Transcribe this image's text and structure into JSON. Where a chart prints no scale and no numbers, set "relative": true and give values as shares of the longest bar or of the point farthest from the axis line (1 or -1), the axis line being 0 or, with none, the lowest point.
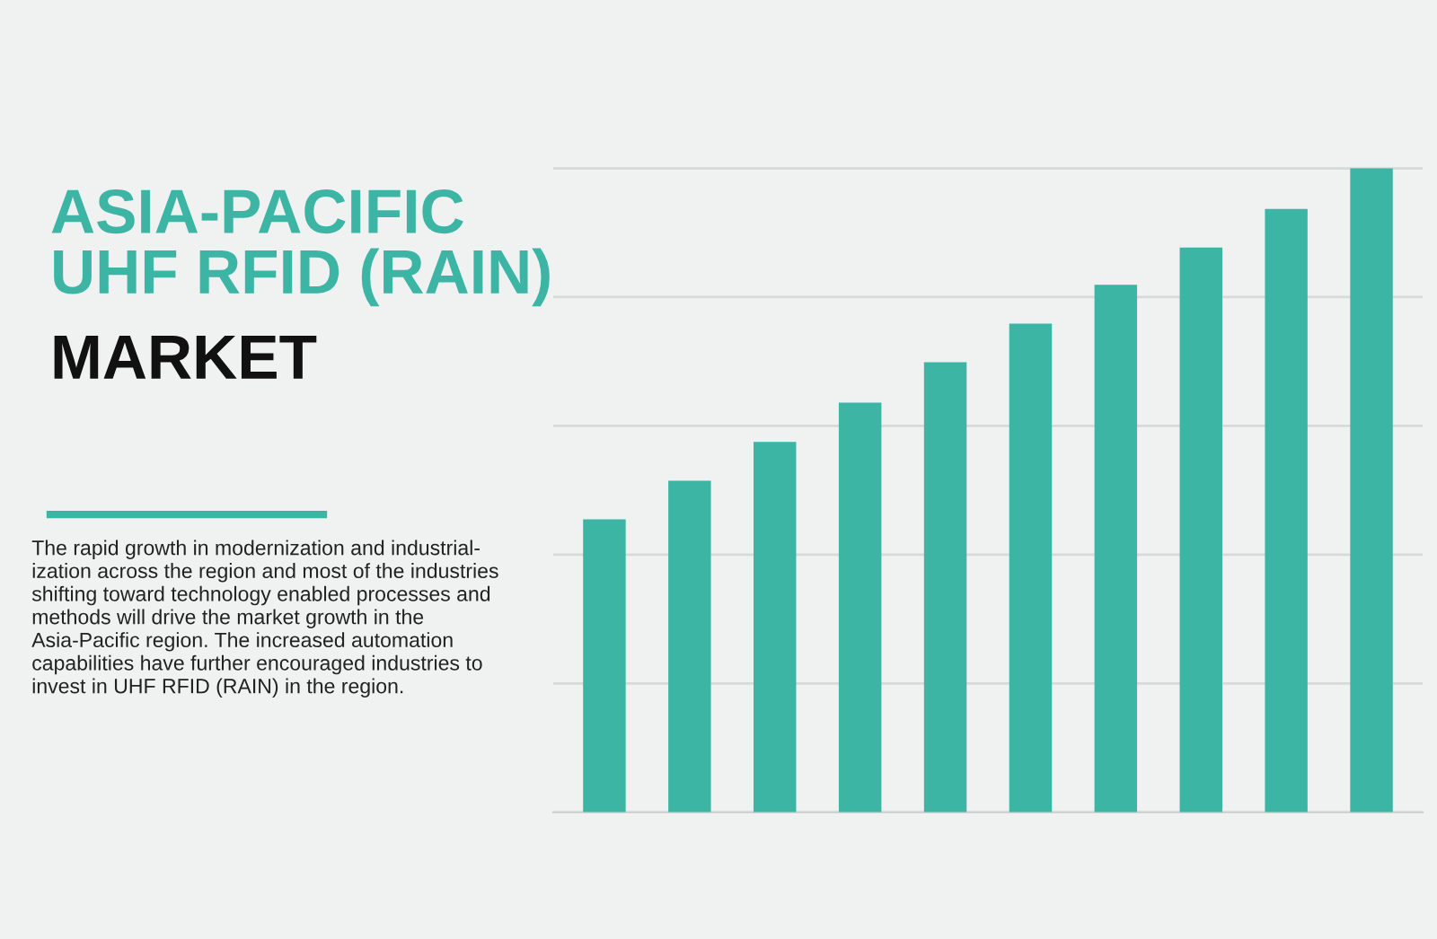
{
  "chart_data": {
    "type": "bar",
    "title": "ASIA-PACIFIC\nUHF RFID (RAIN)",
    "subtitle": "MARKET",
    "annotations": [
      "The rapid growth in modernization and industrial-\nization across the region and most of the industries\nshifting toward technology enabled processes and\nmethods will drive the market growth in the\nAsia-Pacific region. The increased automation\ncapabilities have further encouraged industries to\ninvest in UHF RFID (RAIN) in the region."
    ],
    "categories": [
      null,
      null,
      null,
      null,
      null,
      null,
      null,
      null,
      null,
      null
    ],
    "values": [
      0.455,
      0.515,
      0.575,
      0.636,
      0.699,
      0.759,
      0.819,
      0.877,
      0.937,
      1.0
    ],
    "color": "#3db5a4",
    "relative": true,
    "grid": "y",
    "tick_labels": false
  }
}
